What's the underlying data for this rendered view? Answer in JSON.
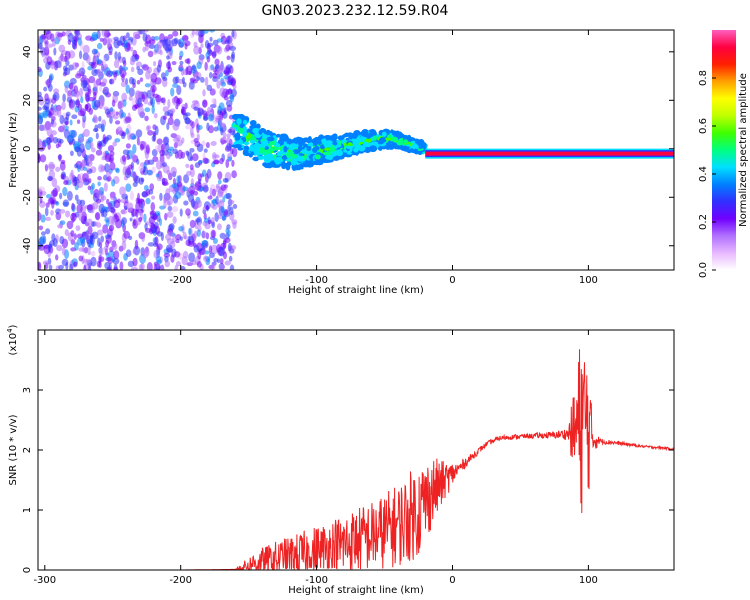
{
  "title": "GN03.2023.232.12.59.R04",
  "colors": {
    "snr_line": "#ee2222",
    "colorbar": [
      "#ffffff",
      "#e8b8ff",
      "#b070ff",
      "#7000ff",
      "#3030ff",
      "#0080ff",
      "#00e0ff",
      "#00ff80",
      "#40ff00",
      "#c0ff00",
      "#ffff00",
      "#ffa000",
      "#ff2000",
      "#ff0040",
      "#ff60c0"
    ]
  },
  "chart_data": [
    {
      "type": "heatmap",
      "title": "",
      "xlabel": "Height of straight line (km)",
      "ylabel": "Frequency (Hz)",
      "xlim": [
        -305,
        163
      ],
      "ylim": [
        -50,
        49
      ],
      "xticks": [
        -300,
        -200,
        -100,
        0,
        100
      ],
      "yticks": [
        -40,
        -20,
        0,
        20,
        40
      ],
      "grid": false,
      "colorbar": {
        "label": "Normalized spectral amplitude",
        "range": [
          0,
          1
        ],
        "ticks": [
          "0.0",
          "0.2",
          "0.4",
          "0.6",
          "0.8"
        ]
      },
      "regions": [
        {
          "x": [
            -305,
            -160
          ],
          "y": [
            -50,
            49
          ],
          "amplitude": 0.1
        },
        {
          "x": [
            -160,
            -20
          ],
          "center_y": [
            8,
            0,
            -2,
            0,
            3,
            4,
            0
          ],
          "amplitude": 0.35
        },
        {
          "x": [
            -20,
            163
          ],
          "center_y": -2,
          "amplitude": 0.95
        }
      ]
    },
    {
      "type": "line",
      "title": "",
      "xlabel": "Height of straight line (km)",
      "ylabel": "SNR (10 * v/v)",
      "yscale_label": "(x10",
      "yscale_exp": "4",
      "yscale_close": ")",
      "xlim": [
        -305,
        163
      ],
      "ylim": [
        0,
        4
      ],
      "xticks": [
        -300,
        -200,
        -100,
        0,
        100
      ],
      "yticks": [
        0,
        1,
        2,
        3
      ],
      "grid": false,
      "series": [
        {
          "x": [
            -305,
            -250,
            -200,
            -160,
            -145,
            -130,
            -110,
            -90,
            -70,
            -55,
            -40,
            -25,
            -15,
            -5,
            5,
            15,
            25,
            35,
            45,
            55,
            65,
            75,
            85,
            90,
            95,
            100,
            103,
            108,
            120,
            140,
            163
          ],
          "values": [
            0.0,
            0.0,
            0.0,
            0.01,
            0.12,
            0.18,
            0.25,
            0.35,
            0.5,
            0.6,
            0.75,
            1.0,
            1.3,
            1.5,
            1.7,
            1.9,
            2.1,
            2.2,
            2.22,
            2.23,
            2.24,
            2.25,
            2.27,
            2.3,
            2.5,
            2.4,
            2.2,
            2.15,
            2.12,
            2.06,
            2.02
          ],
          "noise": [
            0,
            0,
            0,
            0,
            0.2,
            0.3,
            0.4,
            0.5,
            0.55,
            0.6,
            0.7,
            0.8,
            0.6,
            0.3,
            0.1,
            0.06,
            0.04,
            0.04,
            0.04,
            0.04,
            0.05,
            0.06,
            0.1,
            0.8,
            1.6,
            1.2,
            0.3,
            0.05,
            0.03,
            0.02,
            0.02
          ]
        }
      ]
    }
  ]
}
